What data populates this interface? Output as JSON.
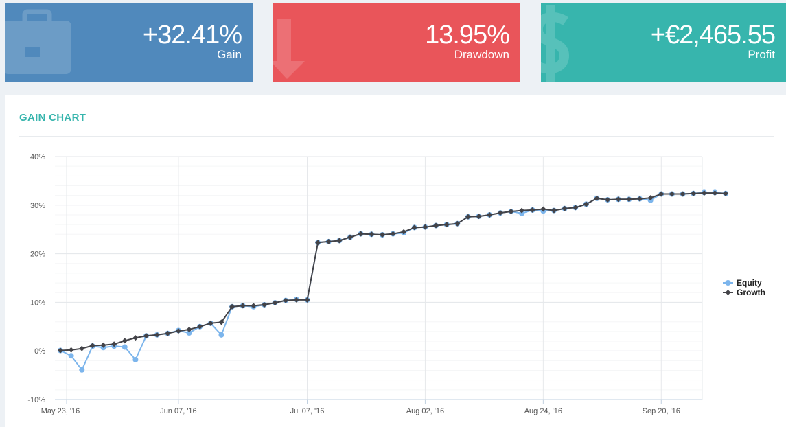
{
  "stats": {
    "gain": {
      "value": "+32.41%",
      "label": "Gain",
      "color": "#5089bc",
      "icon": "briefcase-icon"
    },
    "drawdown": {
      "value": "13.95%",
      "label": "Drawdown",
      "color": "#e9555a",
      "icon": "arrow-down-icon"
    },
    "profit": {
      "value": "+€2,465.55",
      "label": "Profit",
      "color": "#37b5ad",
      "icon": "dollar-icon"
    }
  },
  "panel": {
    "title": "GAIN CHART"
  },
  "chart_data": {
    "type": "line",
    "title": "GAIN CHART",
    "xlabel": "",
    "ylabel": "",
    "ylim": [
      -10,
      40
    ],
    "yticks": [
      -10,
      0,
      10,
      20,
      30,
      40
    ],
    "ytick_labels": [
      "-10%",
      "0%",
      "10%",
      "20%",
      "30%",
      "40%"
    ],
    "x_tick_labels": [
      "May 23, '16",
      "Jun 07, '16",
      "Jul 07, '16",
      "Aug 02, '16",
      "Aug 24, '16",
      "Sep 20, '16"
    ],
    "x_tick_points": [
      0,
      11,
      23,
      34,
      45,
      56
    ],
    "n_points": 63,
    "legend": {
      "position": "right",
      "entries": [
        "Equity",
        "Growth"
      ]
    },
    "series": [
      {
        "name": "Equity",
        "color": "#7cb5ec",
        "values": [
          0.1,
          -1.0,
          -3.9,
          1.0,
          0.7,
          1.0,
          0.8,
          -1.8,
          3.1,
          3.3,
          3.6,
          4.2,
          3.7,
          5.0,
          5.7,
          3.3,
          9.1,
          9.3,
          9.1,
          9.5,
          9.9,
          10.4,
          10.6,
          10.5,
          22.3,
          22.5,
          22.7,
          23.4,
          24.1,
          24.0,
          23.9,
          24.1,
          24.3,
          25.4,
          25.5,
          25.8,
          26.0,
          26.2,
          27.6,
          27.7,
          28.0,
          28.4,
          28.7,
          28.3,
          29.0,
          28.8,
          28.9,
          29.3,
          29.5,
          30.2,
          31.4,
          31.1,
          31.2,
          31.2,
          31.3,
          31.0,
          32.3,
          32.3,
          32.3,
          32.4,
          32.6,
          32.6,
          32.4
        ]
      },
      {
        "name": "Growth",
        "color": "#434348",
        "values": [
          0.1,
          0.2,
          0.5,
          1.1,
          1.2,
          1.4,
          2.1,
          2.7,
          3.1,
          3.3,
          3.6,
          4.1,
          4.4,
          5.0,
          5.7,
          5.9,
          9.1,
          9.3,
          9.3,
          9.5,
          9.9,
          10.4,
          10.5,
          10.5,
          22.3,
          22.5,
          22.7,
          23.4,
          24.1,
          24.0,
          23.9,
          24.1,
          24.5,
          25.4,
          25.5,
          25.8,
          26.0,
          26.2,
          27.6,
          27.7,
          28.0,
          28.4,
          28.7,
          28.9,
          29.0,
          29.2,
          28.9,
          29.3,
          29.5,
          30.2,
          31.4,
          31.1,
          31.2,
          31.2,
          31.3,
          31.5,
          32.3,
          32.3,
          32.3,
          32.4,
          32.5,
          32.5,
          32.4
        ]
      }
    ]
  }
}
